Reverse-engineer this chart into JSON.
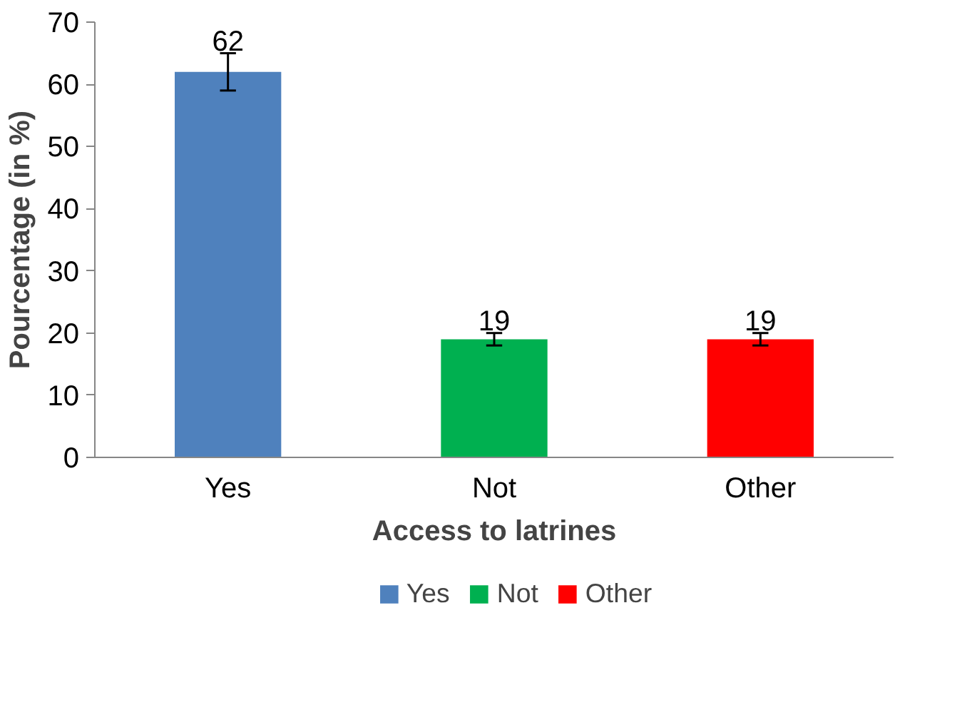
{
  "chart_data": {
    "type": "bar",
    "xlabel": "Access to latrines",
    "ylabel": "Pourcentage (in %)",
    "categories": [
      "Yes",
      "Not",
      "Other"
    ],
    "series": [
      {
        "name": "Yes",
        "color": "#4f81bd",
        "values": [
          62,
          null,
          null
        ],
        "errors": [
          3,
          null,
          null
        ]
      },
      {
        "name": "Not",
        "color": "#00b050",
        "values": [
          null,
          19,
          null
        ],
        "errors": [
          null,
          1,
          null
        ]
      },
      {
        "name": "Other",
        "color": "#ff0000",
        "values": [
          null,
          null,
          19
        ],
        "errors": [
          null,
          null,
          1
        ]
      }
    ],
    "ylim": [
      0,
      70
    ],
    "yticks": [
      0,
      10,
      20,
      30,
      40,
      50,
      60,
      70
    ],
    "data_labels": true,
    "grid": false,
    "legend": "bottom"
  }
}
